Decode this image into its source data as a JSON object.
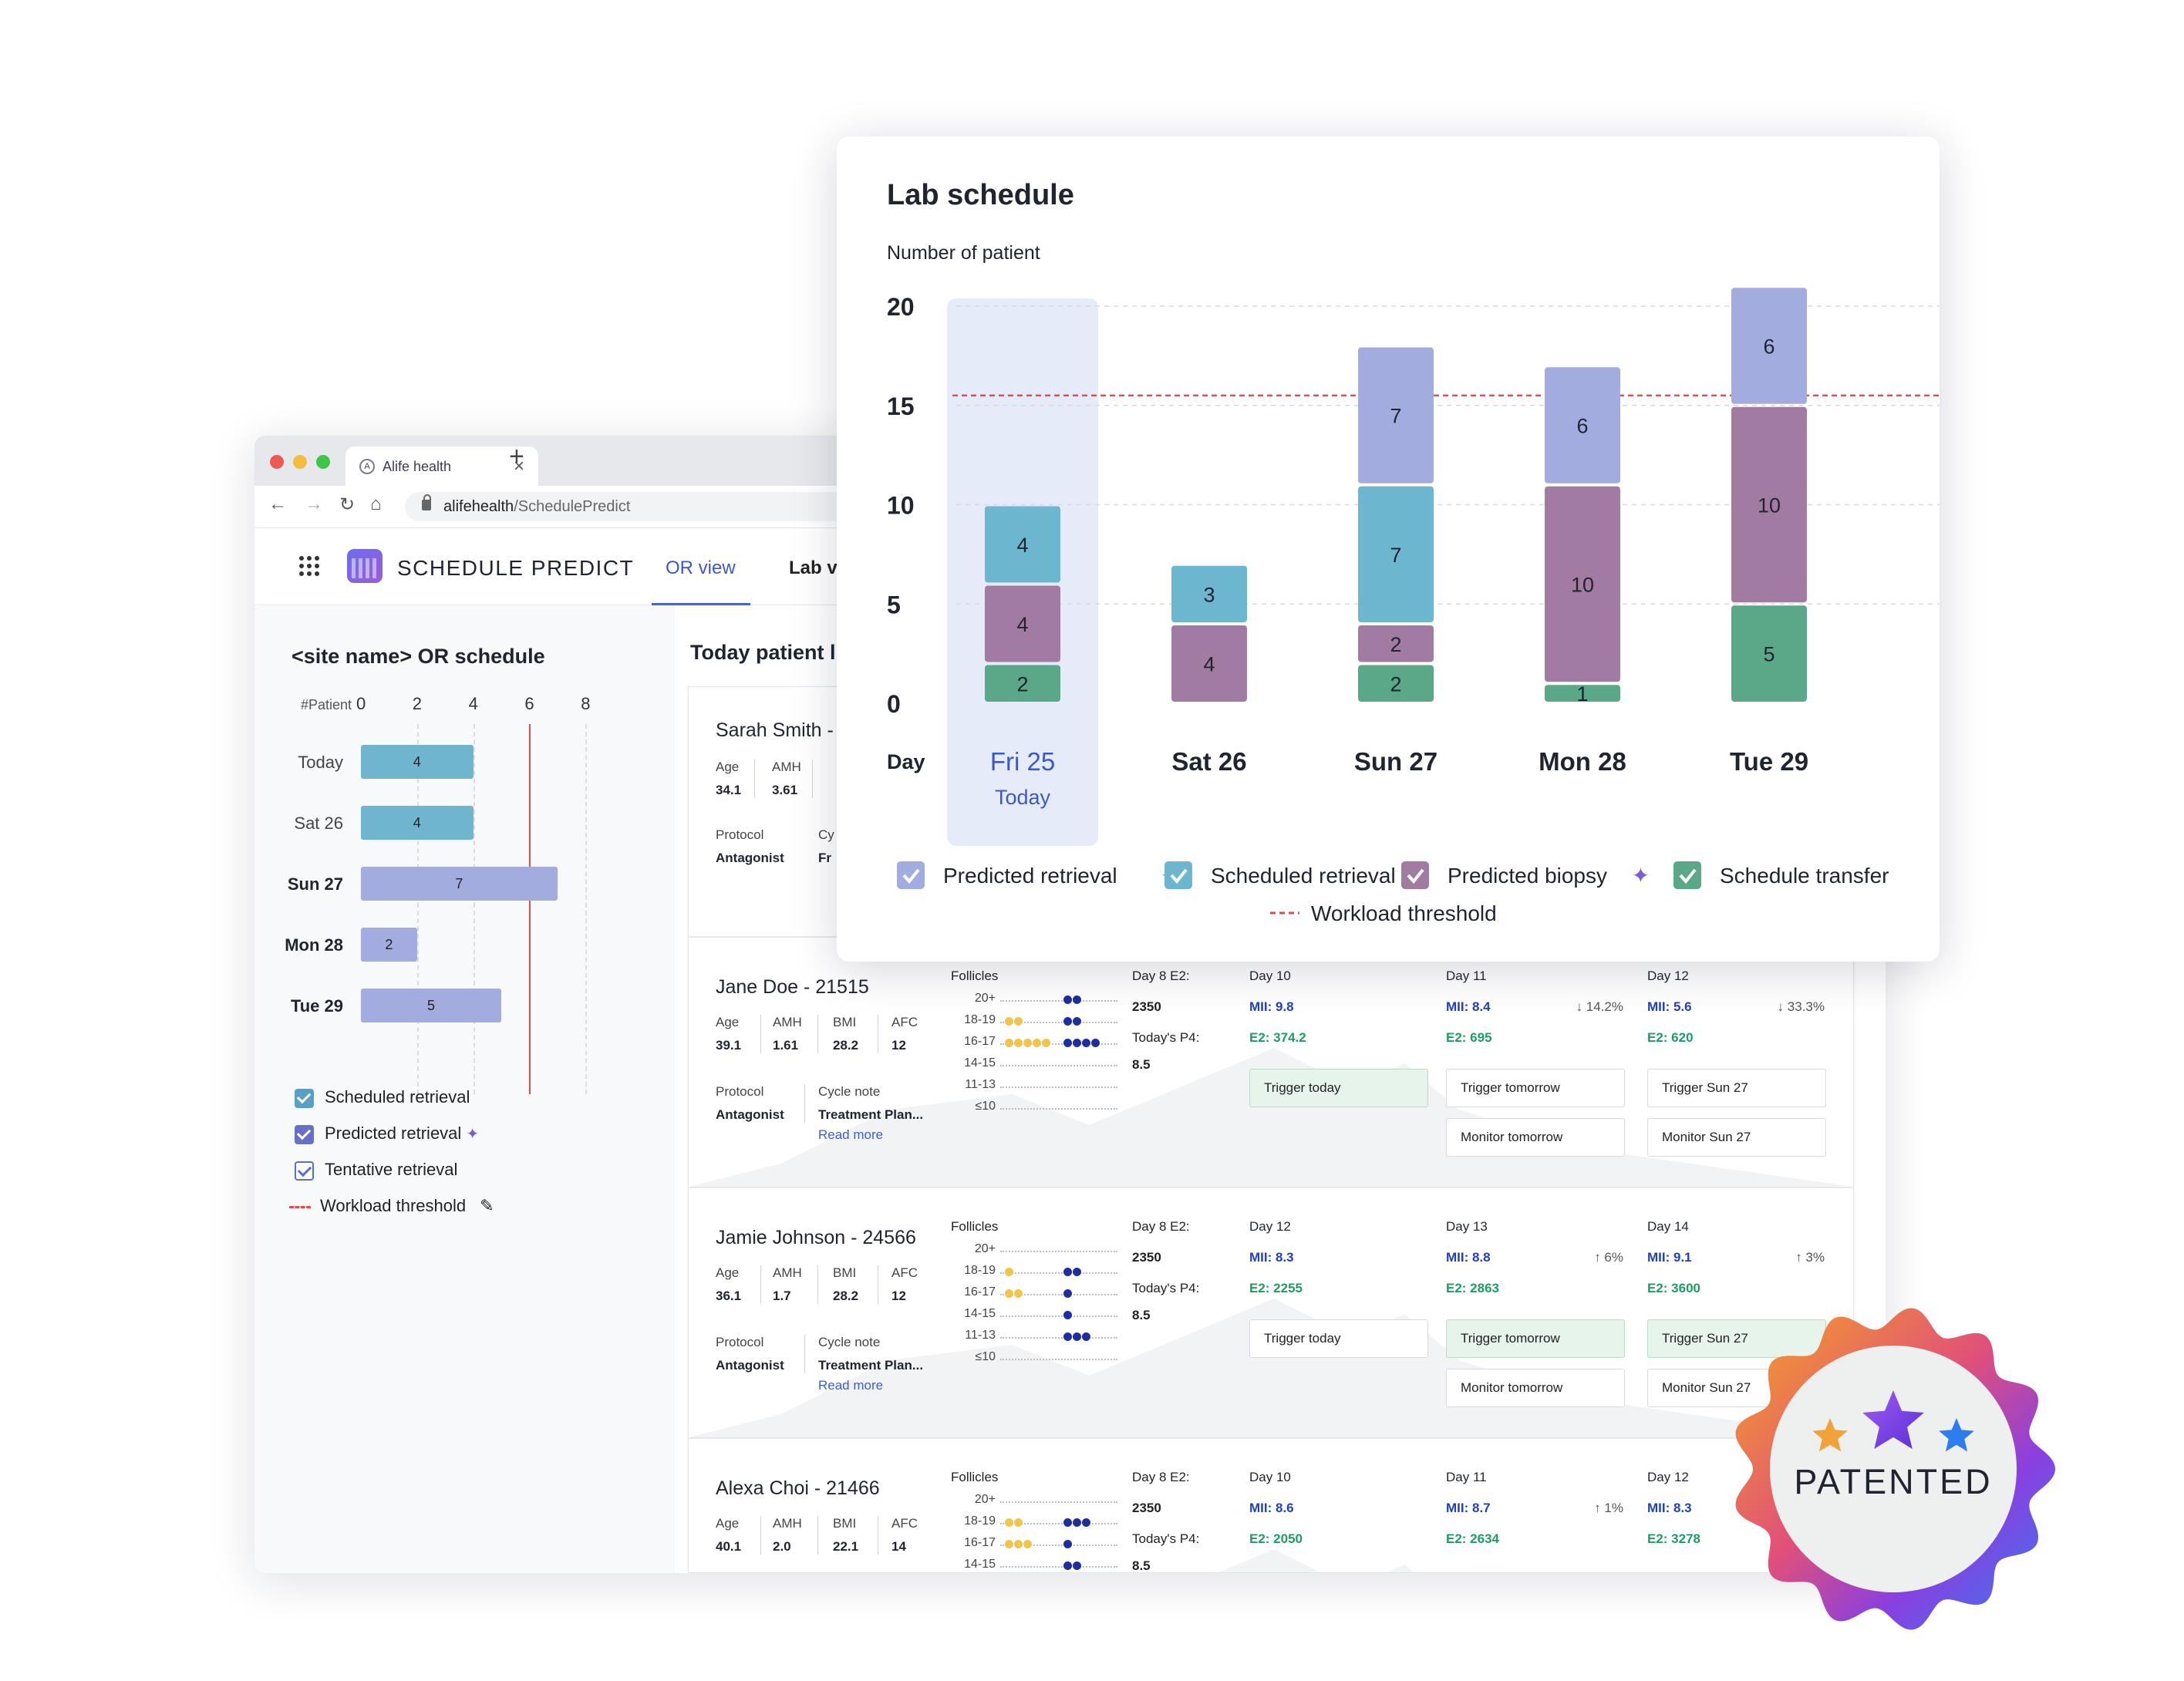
{
  "browser": {
    "tab_title": "Alife health",
    "tab_close": "×",
    "tab_new": "+",
    "url_domain": "alifehealth",
    "url_path": "/SchedulePredict",
    "nav_icons": [
      "back-arrow-icon",
      "forward-arrow-icon",
      "reload-icon",
      "home-icon"
    ]
  },
  "app": {
    "brand": "SCHEDULE PREDICT",
    "tabs": [
      {
        "label": "OR view",
        "active": true
      },
      {
        "label": "Lab v",
        "active": false
      }
    ]
  },
  "or_schedule": {
    "title": "<site name> OR schedule",
    "axis_label": "#Patient",
    "ticks": [
      "0",
      "2",
      "4",
      "6",
      "8"
    ],
    "rows": [
      {
        "label": "Today",
        "value": 4,
        "bold": false,
        "color": "#6fb5cf"
      },
      {
        "label": "Sat 26",
        "value": 4,
        "bold": false,
        "color": "#6fb5cf"
      },
      {
        "label": "Sun 27",
        "value": 7,
        "bold": true,
        "color": "#a3acdf"
      },
      {
        "label": "Mon 28",
        "value": 2,
        "bold": true,
        "color": "#a3acdf"
      },
      {
        "label": "Tue 29",
        "value": 5,
        "bold": true,
        "color": "#a3acdf"
      }
    ],
    "threshold": 6,
    "legend": {
      "scheduled": "Scheduled retrieval",
      "predicted": "Predicted retrieval",
      "tentative": "Tentative retrieval",
      "threshold": "Workload threshold"
    }
  },
  "patient_list": {
    "title": "Today patient l",
    "first_patient": {
      "name": "Sarah Smith -",
      "age_label": "Age",
      "age": "34.1",
      "amh_label": "AMH",
      "amh": "3.61",
      "protocol_label": "Protocol",
      "protocol": "Antagonist",
      "cycle_label": "Cy",
      "cycle": "Fr"
    },
    "patients": [
      {
        "name": "Jane Doe - 21515",
        "labels": {
          "age": "Age",
          "amh": "AMH",
          "bmi": "BMI",
          "afc": "AFC",
          "protocol": "Protocol",
          "cycle": "Cycle note"
        },
        "age": "39.1",
        "amh": "1.61",
        "bmi": "28.2",
        "afc": "12",
        "protocol": "Antagonist",
        "cycle_note": "Treatment Plan...",
        "read_more": "Read more",
        "follicles_title": "Follicles",
        "follicle_labels": [
          "20+",
          "18-19",
          "16-17",
          "14-15",
          "11-13",
          "≤10"
        ],
        "follicles_yellow": [
          0,
          2,
          5,
          0,
          0,
          0
        ],
        "follicles_blue": [
          2,
          2,
          4,
          0,
          0,
          0
        ],
        "follicles_offset": [
          0,
          0,
          0,
          0,
          0,
          0
        ],
        "e2_label": "Day 8 E2:",
        "e2": "2350",
        "p4_label": "Today's P4:",
        "p4": "8.5",
        "days": [
          {
            "day": "Day 10",
            "mii": "MII: 9.8",
            "e2": "E2: 374.2",
            "trend": "",
            "buttons": [
              {
                "label": "Trigger today",
                "green": true
              }
            ]
          },
          {
            "day": "Day 11",
            "mii": "MII: 8.4",
            "e2": "E2: 695",
            "trend": "↓ 14.2%",
            "buttons": [
              {
                "label": "Trigger tomorrow",
                "green": false
              },
              {
                "label": "Monitor tomorrow",
                "green": false
              }
            ]
          },
          {
            "day": "Day 12",
            "mii": "MII: 5.6",
            "e2": "E2: 620",
            "trend": "↓ 33.3%",
            "buttons": [
              {
                "label": "Trigger Sun 27",
                "green": false
              },
              {
                "label": "Monitor Sun 27",
                "green": false
              }
            ]
          }
        ]
      },
      {
        "name": "Jamie Johnson - 24566",
        "labels": {
          "age": "Age",
          "amh": "AMH",
          "bmi": "BMI",
          "afc": "AFC",
          "protocol": "Protocol",
          "cycle": "Cycle note"
        },
        "age": "36.1",
        "amh": "1.7",
        "bmi": "28.2",
        "afc": "12",
        "protocol": "Antagonist",
        "cycle_note": "Treatment Plan...",
        "read_more": "Read more",
        "follicles_title": "Follicles",
        "follicle_labels": [
          "20+",
          "18-19",
          "16-17",
          "14-15",
          "11-13",
          "≤10"
        ],
        "follicles_yellow": [
          0,
          1,
          2,
          0,
          0,
          0
        ],
        "follicles_blue": [
          0,
          2,
          1,
          1,
          3,
          0
        ],
        "follicles_offset": [
          0,
          0,
          0,
          0,
          0,
          0
        ],
        "e2_label": "Day 8 E2:",
        "e2": "2350",
        "p4_label": "Today's P4:",
        "p4": "8.5",
        "days": [
          {
            "day": "Day 12",
            "mii": "MII: 8.3",
            "e2": "E2: 2255",
            "trend": "",
            "buttons": [
              {
                "label": "Trigger today",
                "green": false
              }
            ]
          },
          {
            "day": "Day 13",
            "mii": "MII: 8.8",
            "e2": "E2: 2863",
            "trend": "↑ 6%",
            "buttons": [
              {
                "label": "Trigger tomorrow",
                "green": true
              },
              {
                "label": "Monitor tomorrow",
                "green": false
              }
            ]
          },
          {
            "day": "Day 14",
            "mii": "MII: 9.1",
            "e2": "E2: 3600",
            "trend": "↑ 3%",
            "buttons": [
              {
                "label": "Trigger Sun 27",
                "green": true
              },
              {
                "label": "Monitor Sun 27",
                "green": false
              }
            ]
          }
        ]
      },
      {
        "name": "Alexa Choi - 21466",
        "labels": {
          "age": "Age",
          "amh": "AMH",
          "bmi": "BMI",
          "afc": "AFC",
          "protocol": "Protocol",
          "cycle": "Cycle note"
        },
        "age": "40.1",
        "amh": "2.0",
        "bmi": "22.1",
        "afc": "14",
        "protocol": "",
        "cycle_note": "",
        "read_more": "",
        "follicles_title": "Follicles",
        "follicle_labels": [
          "20+",
          "18-19",
          "16-17",
          "14-15"
        ],
        "follicles_yellow": [
          0,
          2,
          3,
          0
        ],
        "follicles_blue": [
          0,
          3,
          1,
          2
        ],
        "follicles_offset": [
          0,
          0,
          0,
          0
        ],
        "e2_label": "Day 8 E2:",
        "e2": "2350",
        "p4_label": "Today's P4:",
        "p4": "8.5",
        "days": [
          {
            "day": "Day 10",
            "mii": "MII: 8.6",
            "e2": "E2: 2050",
            "trend": "",
            "buttons": []
          },
          {
            "day": "Day 11",
            "mii": "MII: 8.7",
            "e2": "E2: 2634",
            "trend": "↑ 1%",
            "buttons": []
          },
          {
            "day": "Day 12",
            "mii": "MII: 8.3",
            "e2": "E2: 3278",
            "trend": "",
            "buttons": []
          }
        ]
      }
    ]
  },
  "lab_schedule": {
    "title": "Lab schedule",
    "chart_data": {
      "type": "bar",
      "stacked": true,
      "ylabel": "Number of patient",
      "xlabel": "Day",
      "ylim": [
        0,
        20
      ],
      "yticks": [
        "0",
        "5",
        "10",
        "15",
        "20"
      ],
      "categories": [
        "Fri 25",
        "Sat 26",
        "Sun 27",
        "Mon 28",
        "Tue 29"
      ],
      "category_sublabels": [
        "Today",
        "",
        "",
        "",
        ""
      ],
      "highlight_category": "Fri 25",
      "series": [
        {
          "name": "Schedule transfer",
          "color": "#5aa887",
          "values": [
            2,
            0,
            2,
            1,
            5
          ]
        },
        {
          "name": "Predicted biopsy",
          "color": "#a27ba3",
          "values": [
            4,
            4,
            2,
            10,
            10
          ]
        },
        {
          "name": "Scheduled retrieval",
          "color": "#6db6cf",
          "values": [
            4,
            3,
            7,
            0,
            0
          ]
        },
        {
          "name": "Predicted retrieval",
          "color": "#a3acdf",
          "values": [
            0,
            0,
            7,
            6,
            6
          ]
        }
      ],
      "legend_order": [
        "Predicted retrieval",
        "Scheduled retrieval",
        "Predicted biopsy",
        "Schedule transfer"
      ],
      "legend_sparkle": [
        "Predicted retrieval",
        "Predicted biopsy"
      ],
      "threshold": {
        "name": "Workload threshold",
        "value": 15.5,
        "color": "#e04b4b"
      },
      "grid": true
    }
  },
  "badge": {
    "text": "PATENTED",
    "colors": {
      "orange": "#f2a23a",
      "purple": "#7b3fd8",
      "blue": "#2d7df0"
    }
  }
}
